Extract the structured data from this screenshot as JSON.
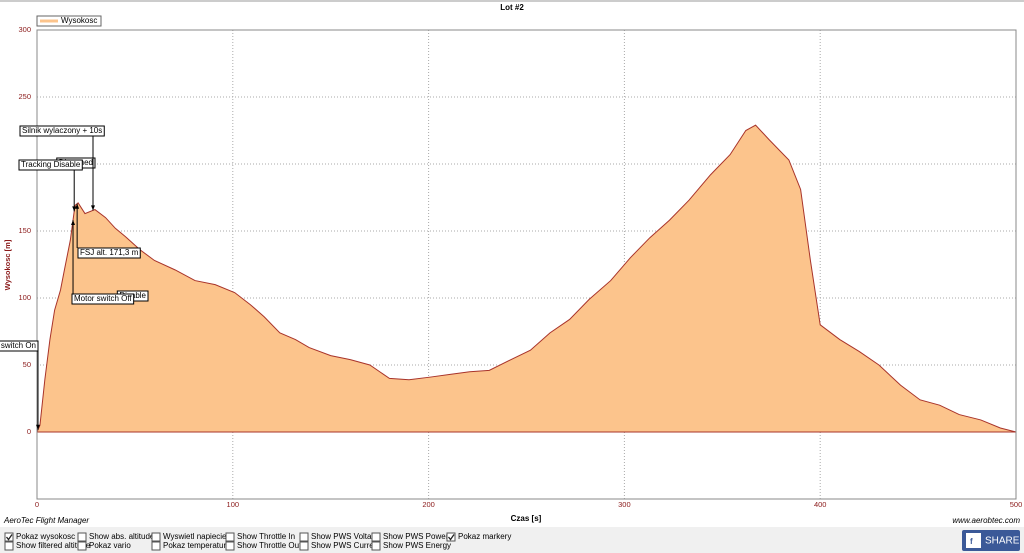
{
  "chart_data": {
    "type": "area",
    "title": "Lot #2",
    "x_label": "Czas [s]",
    "y_label": "Wysokosc [m]",
    "x": [
      0,
      1.5,
      4,
      6.6,
      9,
      12,
      14,
      17,
      19.4,
      21,
      24.5,
      29.6,
      35,
      40,
      45,
      52.6,
      60,
      70.5,
      80.7,
      91,
      101,
      109,
      116,
      124,
      132,
      139,
      150,
      160,
      170,
      180,
      190,
      201,
      211,
      221,
      231,
      242,
      252,
      262,
      272,
      282,
      293,
      303,
      313,
      323,
      333,
      344,
      354,
      362,
      367,
      374,
      384,
      390,
      395,
      400,
      410,
      420,
      430,
      441,
      451,
      461,
      471,
      482,
      492,
      500
    ],
    "series": [
      {
        "name": "Wysokosc",
        "color": "#fcc48c",
        "line_color": "#a8332a",
        "values": [
          0,
          5,
          39,
          69,
          91,
          106,
          121,
          143,
          169,
          171,
          163,
          166,
          160,
          152,
          146,
          136,
          128,
          121,
          113,
          110,
          104,
          95,
          86,
          74,
          69,
          63,
          57,
          54,
          50,
          40,
          39,
          41,
          43,
          45,
          46,
          54,
          61,
          74,
          84,
          99,
          113,
          130,
          145,
          158,
          173,
          192,
          207,
          225,
          229,
          218,
          203,
          181,
          128,
          80,
          69,
          60,
          50,
          35,
          24,
          20,
          13,
          9,
          3,
          0
        ]
      }
    ],
    "xlim": [
      0,
      500
    ],
    "xticks": [
      0,
      100,
      200,
      300,
      400,
      500
    ],
    "ylim": [
      -50,
      300
    ],
    "yticks": [
      0,
      50,
      100,
      150,
      200,
      250,
      300
    ],
    "grid": true,
    "annotations": [
      {
        "label": "Motor switch On",
        "x": 0.5
      },
      {
        "label": "Disarmed",
        "x": 28.6
      },
      {
        "label": "Tracking Disable",
        "x": 19
      },
      {
        "label": "Silnik wylaczony + 10s",
        "x": 28.6
      },
      {
        "label": "FSJ alt. 171,3 m",
        "x": 20.5
      },
      {
        "label": "Disable",
        "x": 29
      },
      {
        "label": "Motor switch Off",
        "x": 18.4
      }
    ]
  },
  "footer": {
    "app": "AeroTec Flight Manager",
    "url": "www.aerobtec.com",
    "share": "SHARE"
  },
  "options": [
    {
      "label": "Pokaz wysokosc",
      "checked": true
    },
    {
      "label": "Show filtered altitude",
      "checked": false
    },
    {
      "label": "Show abs. altitude",
      "checked": false
    },
    {
      "label": "Pokaz vario",
      "checked": false
    },
    {
      "label": "Wyswietl napiecie",
      "checked": false
    },
    {
      "label": "Pokaz temperature",
      "checked": false
    },
    {
      "label": "Show Throttle In",
      "checked": false
    },
    {
      "label": "Show Throttle Out",
      "checked": false
    },
    {
      "label": "Show PWS Voltage",
      "checked": false
    },
    {
      "label": "Show PWS Current",
      "checked": false
    },
    {
      "label": "Show PWS Power",
      "checked": false
    },
    {
      "label": "Show PWS Energy",
      "checked": false
    },
    {
      "label": "Pokaz markery",
      "checked": true
    }
  ]
}
